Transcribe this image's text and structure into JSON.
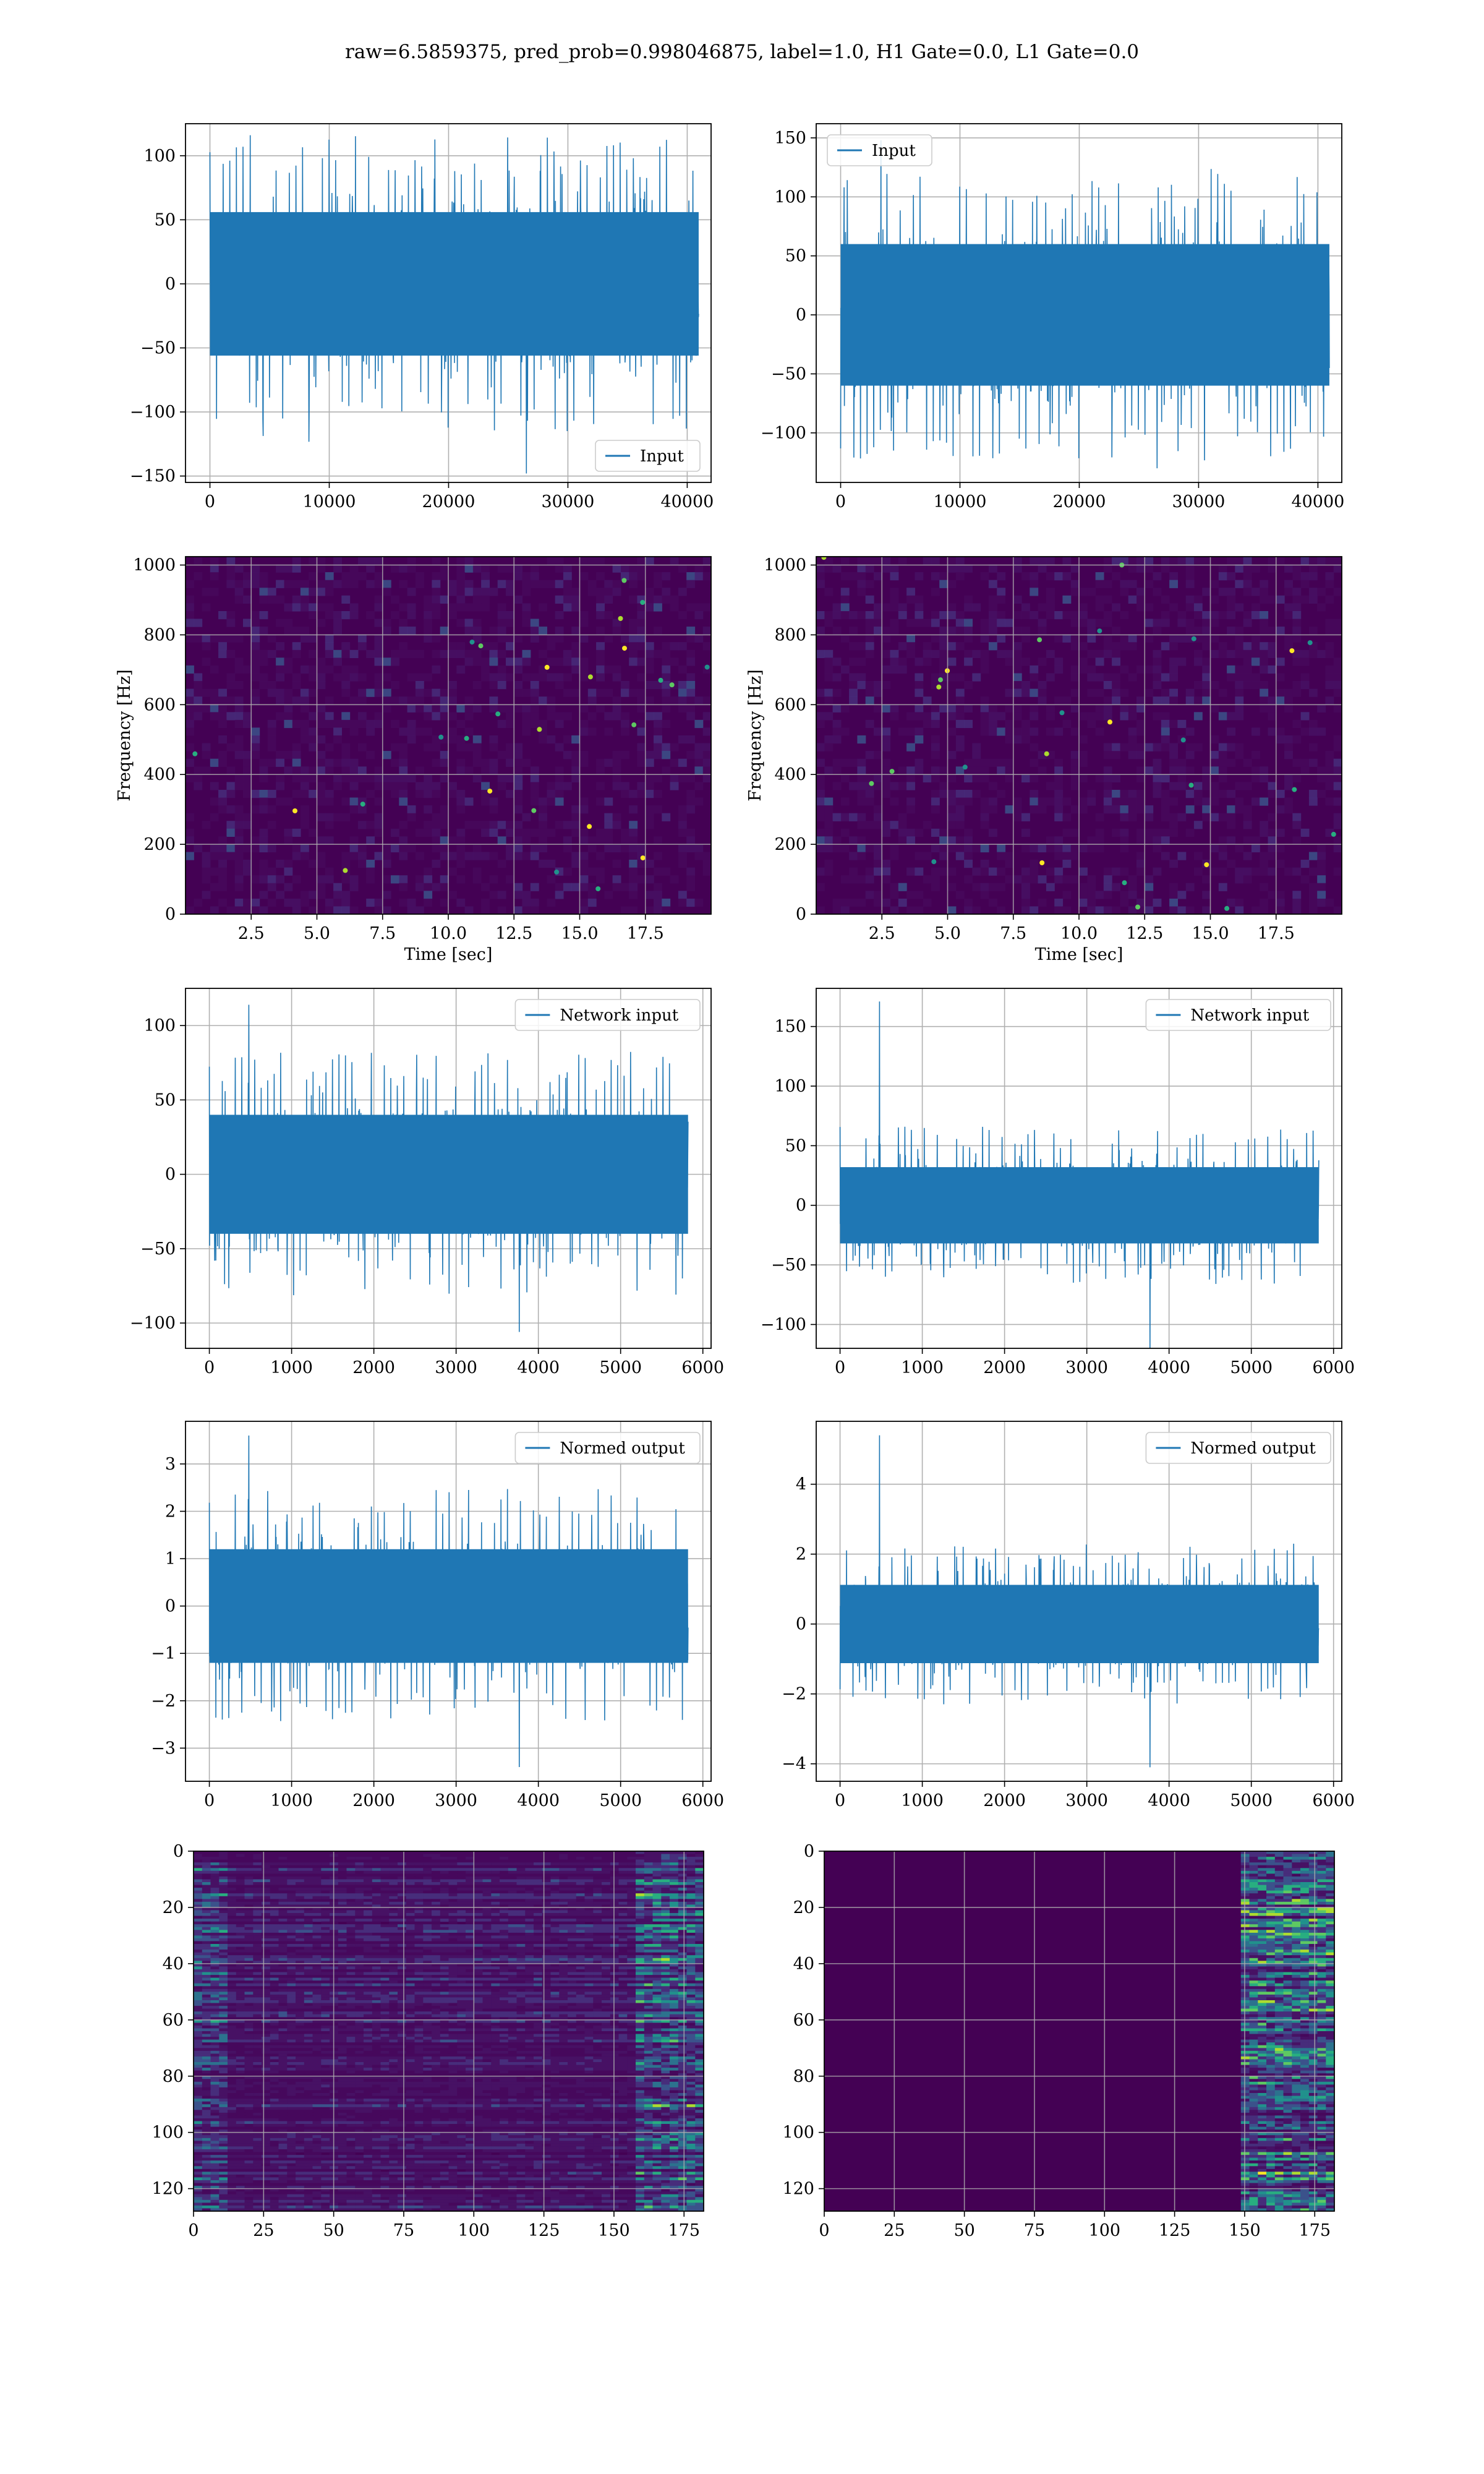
{
  "figure": {
    "suptitle": "raw=6.5859375, pred_prob=0.998046875, label=1.0, H1 Gate=0.0, L1 Gate=0.0",
    "colors": {
      "line": "#1f77b4",
      "grid": "#b0b0b0",
      "viridis_low": "#440154",
      "viridis_mid": "#21918c",
      "viridis_high": "#fde725"
    }
  },
  "chart_data": [
    {
      "id": "input-h1",
      "type": "line",
      "xlabel": "",
      "ylabel": "",
      "xlim": [
        -2048,
        42000
      ],
      "ylim": [
        -155,
        125
      ],
      "xticks": [
        0,
        10000,
        20000,
        30000,
        40000
      ],
      "yticks": [
        -150,
        -100,
        -50,
        0,
        50,
        100
      ],
      "legend": {
        "entries": [
          "Input"
        ],
        "placement": "lower-right"
      },
      "grid": true,
      "series": [
        {
          "name": "Input",
          "n_samples": 40960,
          "x_range": [
            0,
            40960
          ],
          "envelope": [
            -70,
            70
          ],
          "max": 116,
          "min": -148
        }
      ]
    },
    {
      "id": "input-l1",
      "type": "line",
      "xlabel": "",
      "ylabel": "",
      "xlim": [
        -2048,
        42000
      ],
      "ylim": [
        -142,
        162
      ],
      "xticks": [
        0,
        10000,
        20000,
        30000,
        40000
      ],
      "yticks": [
        -100,
        -50,
        0,
        50,
        100,
        150
      ],
      "legend": {
        "entries": [
          "Input"
        ],
        "placement": "upper-left"
      },
      "grid": true,
      "series": [
        {
          "name": "Input",
          "n_samples": 40960,
          "x_range": [
            0,
            40960
          ],
          "envelope": [
            -75,
            75
          ],
          "max": 148,
          "min": -130
        }
      ]
    },
    {
      "id": "spectrogram-h1",
      "type": "heatmap",
      "xlabel": "Time [sec]",
      "ylabel": "Frequency [Hz]",
      "xlim": [
        0,
        20
      ],
      "ylim": [
        0,
        1024
      ],
      "xticks": [
        2.5,
        5.0,
        7.5,
        10.0,
        12.5,
        15.0,
        17.5
      ],
      "yticks": [
        0,
        200,
        400,
        600,
        800,
        1000
      ],
      "colormap": "viridis",
      "grid": true
    },
    {
      "id": "spectrogram-l1",
      "type": "heatmap",
      "xlabel": "Time [sec]",
      "ylabel": "Frequency [Hz]",
      "xlim": [
        0,
        20
      ],
      "ylim": [
        0,
        1024
      ],
      "xticks": [
        2.5,
        5.0,
        7.5,
        10.0,
        12.5,
        15.0,
        17.5
      ],
      "yticks": [
        0,
        200,
        400,
        600,
        800,
        1000
      ],
      "colormap": "viridis",
      "grid": true
    },
    {
      "id": "network-input-h1",
      "type": "line",
      "xlabel": "",
      "ylabel": "",
      "xlim": [
        -290,
        6100
      ],
      "ylim": [
        -117,
        125
      ],
      "xticks": [
        0,
        1000,
        2000,
        3000,
        4000,
        5000,
        6000
      ],
      "yticks": [
        -100,
        -50,
        0,
        50,
        100
      ],
      "legend": {
        "entries": [
          "Network input"
        ],
        "placement": "upper-right"
      },
      "grid": true,
      "series": [
        {
          "name": "Network input",
          "n_samples": 5820,
          "x_range": [
            0,
            5820
          ],
          "envelope": [
            -50,
            50
          ],
          "max": 114,
          "min": -106
        }
      ]
    },
    {
      "id": "network-input-l1",
      "type": "line",
      "xlabel": "",
      "ylabel": "",
      "xlim": [
        -290,
        6100
      ],
      "ylim": [
        -120,
        182
      ],
      "xticks": [
        0,
        1000,
        2000,
        3000,
        4000,
        5000,
        6000
      ],
      "yticks": [
        -100,
        -50,
        0,
        50,
        100,
        150
      ],
      "legend": {
        "entries": [
          "Network input"
        ],
        "placement": "upper-right"
      },
      "grid": true,
      "series": [
        {
          "name": "Network input",
          "n_samples": 5820,
          "x_range": [
            0,
            5820
          ],
          "envelope": [
            -40,
            40
          ],
          "max": 171,
          "min": -126
        }
      ]
    },
    {
      "id": "normed-output-h1",
      "type": "line",
      "xlabel": "",
      "ylabel": "",
      "xlim": [
        -290,
        6100
      ],
      "ylim": [
        -3.7,
        3.9
      ],
      "xticks": [
        0,
        1000,
        2000,
        3000,
        4000,
        5000,
        6000
      ],
      "yticks": [
        -3,
        -2,
        -1,
        0,
        1,
        2,
        3
      ],
      "legend": {
        "entries": [
          "Normed output"
        ],
        "placement": "upper-right"
      },
      "grid": true,
      "series": [
        {
          "name": "Normed output",
          "n_samples": 5820,
          "x_range": [
            0,
            5820
          ],
          "envelope": [
            -1.5,
            1.5
          ],
          "max": 3.6,
          "min": -3.4
        }
      ]
    },
    {
      "id": "normed-output-l1",
      "type": "line",
      "xlabel": "",
      "ylabel": "",
      "xlim": [
        -290,
        6100
      ],
      "ylim": [
        -4.5,
        5.8
      ],
      "xticks": [
        0,
        1000,
        2000,
        3000,
        4000,
        5000,
        6000
      ],
      "yticks": [
        -4,
        -2,
        0,
        2,
        4
      ],
      "legend": {
        "entries": [
          "Normed output"
        ],
        "placement": "upper-right"
      },
      "grid": true,
      "series": [
        {
          "name": "Normed output",
          "n_samples": 5820,
          "x_range": [
            0,
            5820
          ],
          "envelope": [
            -1.4,
            1.4
          ],
          "max": 5.4,
          "min": -4.1
        }
      ]
    },
    {
      "id": "feature-map-h1",
      "type": "heatmap",
      "xlabel": "",
      "ylabel": "",
      "xlim": [
        0,
        182
      ],
      "ylim": [
        128,
        0
      ],
      "xticks": [
        0,
        25,
        50,
        75,
        100,
        125,
        150,
        175
      ],
      "yticks": [
        0,
        20,
        40,
        60,
        80,
        100,
        120
      ],
      "colormap": "viridis",
      "grid": true
    },
    {
      "id": "feature-map-l1",
      "type": "heatmap",
      "xlabel": "",
      "ylabel": "",
      "xlim": [
        0,
        182
      ],
      "ylim": [
        128,
        0
      ],
      "xticks": [
        0,
        25,
        50,
        75,
        100,
        125,
        150,
        175
      ],
      "yticks": [
        0,
        20,
        40,
        60,
        80,
        100,
        120
      ],
      "colormap": "viridis",
      "grid": true
    }
  ]
}
